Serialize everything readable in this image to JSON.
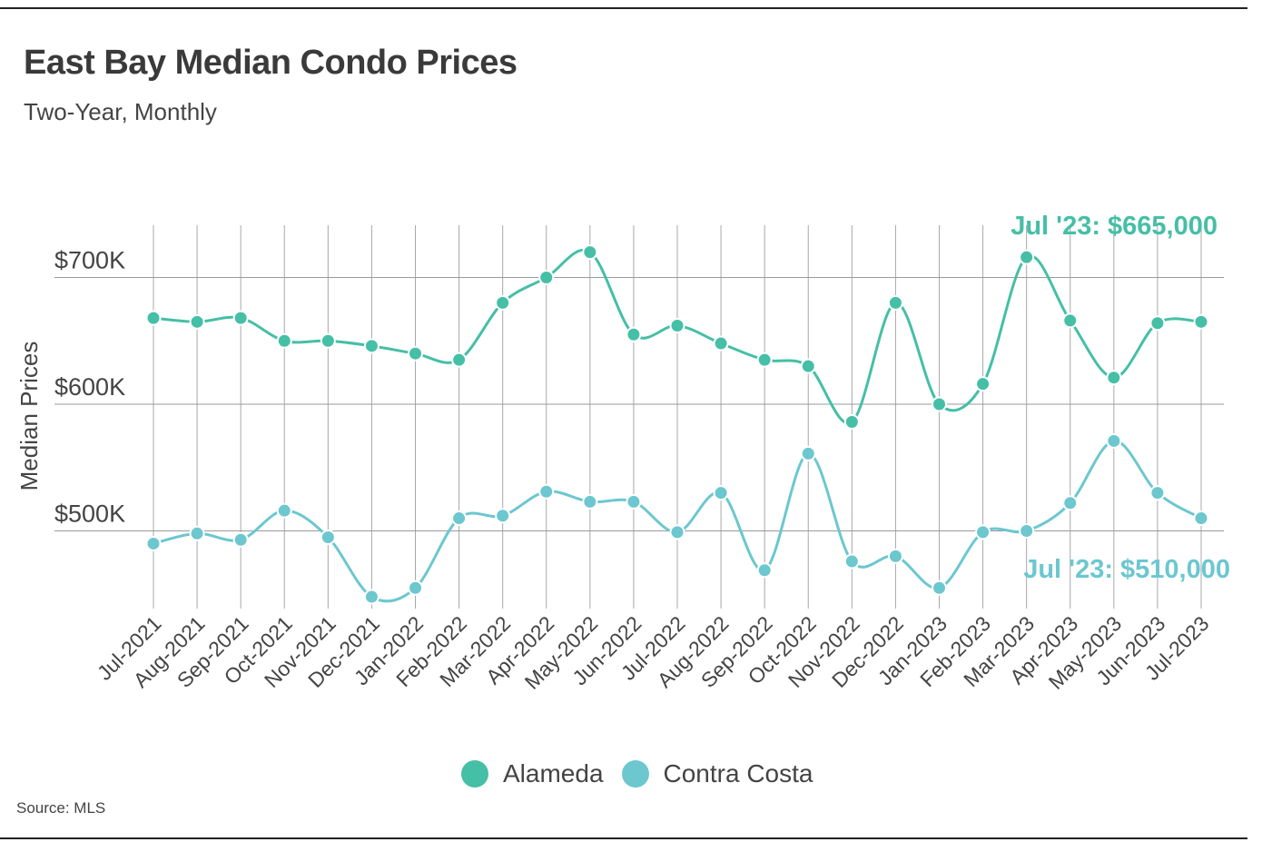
{
  "header": {
    "title": "East Bay Median Condo Prices",
    "subtitle": "Two-Year, Monthly"
  },
  "footer": {
    "source": "Source:  MLS"
  },
  "colors": {
    "alameda": "#45bfa6",
    "contra_costa": "#6cc7cf",
    "grid": "#9a9a9a",
    "text": "#444444"
  },
  "chart_data": {
    "type": "line",
    "title": "East Bay Median Condo Prices",
    "subtitle": "Two-Year, Monthly",
    "xlabel": "",
    "ylabel": "Median Prices",
    "ylim": [
      420000,
      750000
    ],
    "yticks": [
      {
        "value": 500000,
        "label": "$500K"
      },
      {
        "value": 600000,
        "label": "$600K"
      },
      {
        "value": 700000,
        "label": "$700K"
      }
    ],
    "grid": true,
    "categories": [
      "Jul-2021",
      "Aug-2021",
      "Sep-2021",
      "Oct-2021",
      "Nov-2021",
      "Dec-2021",
      "Jan-2022",
      "Feb-2022",
      "Mar-2022",
      "Apr-2022",
      "May-2022",
      "Jun-2022",
      "Jul-2022",
      "Aug-2022",
      "Sep-2022",
      "Oct-2022",
      "Nov-2022",
      "Dec-2022",
      "Jan-2023",
      "Feb-2023",
      "Mar-2023",
      "Apr-2023",
      "May-2023",
      "Jun-2023",
      "Jul-2023"
    ],
    "series": [
      {
        "name": "Alameda",
        "color": "#45bfa6",
        "values": [
          668000,
          665000,
          668000,
          650000,
          650000,
          646000,
          640000,
          635000,
          680000,
          700000,
          720000,
          655000,
          662000,
          648000,
          635000,
          630000,
          586000,
          680000,
          600000,
          616000,
          716000,
          666000,
          621000,
          664000,
          665000
        ],
        "annotation": "Jul '23: $665,000"
      },
      {
        "name": "Contra Costa",
        "color": "#6cc7cf",
        "values": [
          490000,
          498000,
          493000,
          516000,
          495000,
          448000,
          455000,
          510000,
          512000,
          531000,
          523000,
          523000,
          499000,
          530000,
          469000,
          561000,
          476000,
          480000,
          455000,
          499000,
          500000,
          522000,
          571000,
          530000,
          510000
        ],
        "annotation": "Jul '23: $510,000"
      }
    ],
    "legend": "bottom-center"
  }
}
